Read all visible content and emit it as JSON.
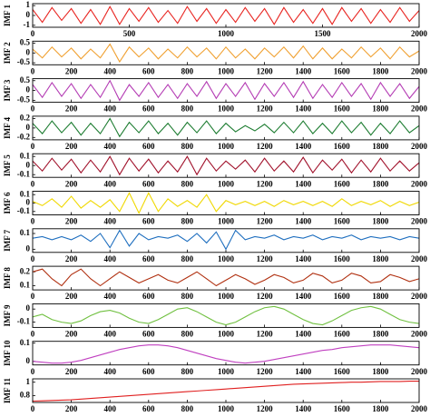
{
  "chart_data": [
    {
      "type": "line",
      "ylabel": "IMF 1",
      "color": "#e8231f",
      "xlim": [
        0,
        2000
      ],
      "xticks": [
        0,
        500,
        1000,
        1500,
        2000
      ],
      "ylim": [
        -1.2,
        1.2
      ],
      "yticks": [
        -1,
        0,
        1
      ],
      "x": [
        0,
        50,
        100,
        150,
        200,
        250,
        300,
        350,
        400,
        450,
        500,
        550,
        600,
        650,
        700,
        750,
        800,
        850,
        900,
        950,
        1000,
        1050,
        1100,
        1150,
        1200,
        1250,
        1300,
        1350,
        1400,
        1450,
        1500,
        1550,
        1600,
        1650,
        1700,
        1750,
        1800,
        1850,
        1900,
        1950,
        2000
      ],
      "values": [
        0.6,
        -0.7,
        0.8,
        -0.5,
        0.7,
        -0.8,
        0.6,
        -0.9,
        0.9,
        -0.9,
        0.7,
        -0.6,
        0.8,
        -0.7,
        0.5,
        -0.8,
        0.9,
        -0.6,
        0.7,
        -0.8,
        0.6,
        -0.7,
        0.8,
        -0.6,
        0.7,
        -0.9,
        0.8,
        -0.7,
        0.6,
        -0.8,
        0.7,
        -0.9,
        0.8,
        -0.6,
        0.7,
        -0.8,
        0.6,
        -0.7,
        0.8,
        -0.6,
        0.5
      ]
    },
    {
      "type": "line",
      "ylabel": "IMF 2",
      "color": "#f0a030",
      "xlim": [
        0,
        2000
      ],
      "xticks": [
        0,
        200,
        400,
        600,
        800,
        1000,
        1200,
        1400,
        1600,
        1800,
        2000
      ],
      "ylim": [
        -0.6,
        0.6
      ],
      "yticks": [
        -0.5,
        0,
        0.5
      ],
      "x": [
        0,
        50,
        100,
        150,
        200,
        250,
        300,
        350,
        400,
        450,
        500,
        550,
        600,
        650,
        700,
        750,
        800,
        850,
        900,
        950,
        1000,
        1050,
        1100,
        1150,
        1200,
        1250,
        1300,
        1350,
        1400,
        1450,
        1500,
        1550,
        1600,
        1650,
        1700,
        1750,
        1800,
        1850,
        1900,
        1950,
        2000
      ],
      "values": [
        0.2,
        -0.25,
        0.3,
        -0.2,
        0.25,
        -0.3,
        0.2,
        -0.25,
        0.45,
        -0.45,
        0.3,
        -0.2,
        0.25,
        -0.3,
        0.2,
        -0.25,
        0.3,
        -0.2,
        0.25,
        -0.3,
        0.3,
        -0.25,
        0.2,
        -0.3,
        0.25,
        -0.2,
        0.3,
        -0.25,
        0.35,
        -0.3,
        0.25,
        -0.3,
        0.2,
        -0.25,
        0.3,
        -0.2,
        0.25,
        -0.3,
        0.3,
        -0.2,
        0.1
      ]
    },
    {
      "type": "line",
      "ylabel": "IMF 3",
      "color": "#b43cb4",
      "xlim": [
        0,
        2000
      ],
      "xticks": [
        0,
        200,
        400,
        600,
        800,
        1000,
        1200,
        1400,
        1600,
        1800,
        2000
      ],
      "ylim": [
        -0.6,
        0.6
      ],
      "yticks": [
        -0.5,
        0,
        0.5
      ],
      "x": [
        0,
        50,
        100,
        150,
        200,
        250,
        300,
        350,
        400,
        450,
        500,
        550,
        600,
        650,
        700,
        750,
        800,
        850,
        900,
        950,
        1000,
        1050,
        1100,
        1150,
        1200,
        1250,
        1300,
        1350,
        1400,
        1450,
        1500,
        1550,
        1600,
        1650,
        1700,
        1750,
        1800,
        1850,
        1900,
        1950,
        2000
      ],
      "values": [
        0.3,
        -0.35,
        0.4,
        -0.3,
        0.35,
        -0.4,
        0.3,
        -0.35,
        0.5,
        -0.5,
        0.3,
        -0.3,
        0.4,
        -0.35,
        0.3,
        -0.4,
        0.35,
        -0.3,
        0.45,
        -0.4,
        0.35,
        -0.3,
        0.4,
        -0.45,
        0.35,
        -0.3,
        0.4,
        -0.35,
        0.45,
        -0.4,
        0.3,
        -0.35,
        0.4,
        -0.3,
        0.35,
        -0.45,
        0.4,
        -0.3,
        0.35,
        -0.4,
        0.2
      ]
    },
    {
      "type": "line",
      "ylabel": "IMF 4",
      "color": "#1e7d32",
      "xlim": [
        0,
        2000
      ],
      "xticks": [
        0,
        200,
        400,
        600,
        800,
        1000,
        1200,
        1400,
        1600,
        1800,
        2000
      ],
      "ylim": [
        -0.25,
        0.25
      ],
      "yticks": [
        -0.2,
        0,
        0.2
      ],
      "x": [
        0,
        50,
        100,
        150,
        200,
        250,
        300,
        350,
        400,
        450,
        500,
        550,
        600,
        650,
        700,
        750,
        800,
        850,
        900,
        950,
        1000,
        1050,
        1100,
        1150,
        1200,
        1250,
        1300,
        1350,
        1400,
        1450,
        1500,
        1550,
        1600,
        1650,
        1700,
        1750,
        1800,
        1850,
        1900,
        1950,
        2000
      ],
      "values": [
        0.1,
        -0.12,
        0.15,
        -0.1,
        0.12,
        -0.15,
        0.1,
        -0.12,
        0.2,
        -0.18,
        0.12,
        -0.1,
        0.15,
        -0.12,
        0.1,
        -0.15,
        0.12,
        -0.1,
        0.15,
        -0.12,
        0.1,
        -0.08,
        0.05,
        -0.06,
        0.08,
        -0.1,
        0.12,
        -0.1,
        0.15,
        -0.12,
        0.1,
        -0.12,
        0.15,
        -0.1,
        0.12,
        -0.15,
        0.1,
        -0.12,
        0.15,
        -0.1,
        0.05
      ]
    },
    {
      "type": "line",
      "ylabel": "IMF 5",
      "color": "#a0102a",
      "xlim": [
        0,
        2000
      ],
      "xticks": [
        0,
        200,
        400,
        600,
        800,
        1000,
        1200,
        1400,
        1600,
        1800,
        2000
      ],
      "ylim": [
        -0.13,
        0.13
      ],
      "yticks": [
        -0.1,
        0,
        0.1
      ],
      "x": [
        0,
        50,
        100,
        150,
        200,
        250,
        300,
        350,
        400,
        450,
        500,
        550,
        600,
        650,
        700,
        750,
        800,
        850,
        900,
        950,
        1000,
        1050,
        1100,
        1150,
        1200,
        1250,
        1300,
        1350,
        1400,
        1450,
        1500,
        1550,
        1600,
        1650,
        1700,
        1750,
        1800,
        1850,
        1900,
        1950,
        2000
      ],
      "values": [
        0.05,
        -0.06,
        0.08,
        -0.05,
        0.07,
        -0.08,
        0.06,
        -0.07,
        0.1,
        -0.1,
        0.08,
        -0.06,
        0.07,
        -0.08,
        0.05,
        -0.07,
        0.1,
        -0.1,
        0.08,
        -0.06,
        0.05,
        -0.04,
        0.06,
        -0.07,
        0.08,
        -0.06,
        0.05,
        -0.07,
        0.09,
        -0.08,
        0.06,
        -0.05,
        0.07,
        -0.08,
        0.06,
        -0.07,
        0.08,
        -0.06,
        0.05,
        -0.06,
        0.03
      ]
    },
    {
      "type": "line",
      "ylabel": "IMF 6",
      "color": "#f0d800",
      "xlim": [
        0,
        2000
      ],
      "xticks": [
        0,
        200,
        400,
        600,
        800,
        1000,
        1200,
        1400,
        1600,
        1800,
        2000
      ],
      "ylim": [
        -0.14,
        0.14
      ],
      "yticks": [
        -0.1,
        0,
        0.1
      ],
      "x": [
        0,
        50,
        100,
        150,
        200,
        250,
        300,
        350,
        400,
        450,
        500,
        550,
        600,
        650,
        700,
        750,
        800,
        850,
        900,
        950,
        1000,
        1050,
        1100,
        1150,
        1200,
        1250,
        1300,
        1350,
        1400,
        1450,
        1500,
        1550,
        1600,
        1650,
        1700,
        1750,
        1800,
        1850,
        1900,
        1950,
        2000
      ],
      "values": [
        0.02,
        -0.03,
        0.05,
        -0.05,
        0.08,
        -0.06,
        0.03,
        -0.05,
        0.04,
        -0.1,
        0.12,
        -0.12,
        0.12,
        -0.1,
        0.05,
        -0.04,
        0.03,
        -0.05,
        0.1,
        -0.1,
        0.03,
        -0.02,
        0.02,
        -0.03,
        0.02,
        -0.04,
        0.03,
        -0.02,
        0.02,
        -0.03,
        0.02,
        -0.04,
        0.05,
        -0.03,
        0.02,
        -0.02,
        0.03,
        -0.04,
        0.02,
        -0.03,
        0.01
      ]
    },
    {
      "type": "line",
      "ylabel": "IMF 7",
      "color": "#1f6fbf",
      "xlim": [
        0,
        2000
      ],
      "xticks": [
        0,
        200,
        400,
        600,
        800,
        1000,
        1200,
        1400,
        1600,
        1800,
        2000
      ],
      "ylim": [
        -0.02,
        0.13
      ],
      "yticks": [
        0,
        0.1
      ],
      "x": [
        0,
        50,
        100,
        150,
        200,
        250,
        300,
        350,
        400,
        450,
        500,
        550,
        600,
        650,
        700,
        750,
        800,
        850,
        900,
        950,
        1000,
        1050,
        1100,
        1150,
        1200,
        1250,
        1300,
        1350,
        1400,
        1450,
        1500,
        1550,
        1600,
        1650,
        1700,
        1750,
        1800,
        1850,
        1900,
        1950,
        2000
      ],
      "values": [
        0.07,
        0.08,
        0.06,
        0.08,
        0.06,
        0.09,
        0.05,
        0.1,
        0.01,
        0.12,
        0.02,
        0.1,
        0.06,
        0.08,
        0.07,
        0.09,
        0.05,
        0.1,
        0.04,
        0.11,
        0.0,
        0.12,
        0.06,
        0.08,
        0.07,
        0.09,
        0.06,
        0.08,
        0.07,
        0.09,
        0.06,
        0.08,
        0.07,
        0.09,
        0.06,
        0.08,
        0.07,
        0.08,
        0.06,
        0.08,
        0.07
      ]
    },
    {
      "type": "line",
      "ylabel": "IMF 8",
      "color": "#b03010",
      "xlim": [
        0,
        2000
      ],
      "xticks": [
        0,
        200,
        400,
        600,
        800,
        1000,
        1200,
        1400,
        1600,
        1800,
        2000
      ],
      "ylim": [
        0.07,
        0.24
      ],
      "yticks": [
        0.1,
        0.2
      ],
      "x": [
        0,
        50,
        100,
        150,
        200,
        250,
        300,
        350,
        400,
        450,
        500,
        550,
        600,
        650,
        700,
        750,
        800,
        850,
        900,
        950,
        1000,
        1050,
        1100,
        1150,
        1200,
        1250,
        1300,
        1350,
        1400,
        1450,
        1500,
        1550,
        1600,
        1650,
        1700,
        1750,
        1800,
        1850,
        1900,
        1950,
        2000
      ],
      "values": [
        0.2,
        0.22,
        0.15,
        0.1,
        0.18,
        0.22,
        0.15,
        0.1,
        0.15,
        0.2,
        0.16,
        0.12,
        0.15,
        0.18,
        0.14,
        0.12,
        0.16,
        0.2,
        0.15,
        0.1,
        0.14,
        0.18,
        0.15,
        0.11,
        0.14,
        0.18,
        0.16,
        0.12,
        0.14,
        0.19,
        0.17,
        0.12,
        0.14,
        0.19,
        0.17,
        0.12,
        0.13,
        0.18,
        0.16,
        0.13,
        0.15
      ]
    },
    {
      "type": "line",
      "ylabel": "IMF 9",
      "color": "#70c040",
      "xlim": [
        0,
        2000
      ],
      "xticks": [
        0,
        200,
        400,
        600,
        800,
        1000,
        1200,
        1400,
        1600,
        1800,
        2000
      ],
      "ylim": [
        -0.14,
        0.04
      ],
      "yticks": [
        -0.1,
        0
      ],
      "x": [
        0,
        50,
        100,
        150,
        200,
        250,
        300,
        350,
        400,
        450,
        500,
        550,
        600,
        650,
        700,
        750,
        800,
        850,
        900,
        950,
        1000,
        1050,
        1100,
        1150,
        1200,
        1250,
        1300,
        1350,
        1400,
        1450,
        1500,
        1550,
        1600,
        1650,
        1700,
        1750,
        1800,
        1850,
        1900,
        1950,
        2000
      ],
      "values": [
        -0.06,
        -0.04,
        -0.08,
        -0.1,
        -0.11,
        -0.09,
        -0.05,
        -0.02,
        -0.01,
        -0.03,
        -0.07,
        -0.1,
        -0.11,
        -0.08,
        -0.04,
        0.0,
        0.01,
        -0.02,
        -0.06,
        -0.1,
        -0.12,
        -0.1,
        -0.06,
        -0.02,
        0.01,
        0.02,
        0.0,
        -0.04,
        -0.08,
        -0.11,
        -0.12,
        -0.09,
        -0.05,
        -0.01,
        0.01,
        0.02,
        0.0,
        -0.04,
        -0.08,
        -0.1,
        -0.11
      ]
    },
    {
      "type": "line",
      "ylabel": "IMF 10",
      "color": "#c040c0",
      "xlim": [
        0,
        2000
      ],
      "xticks": [
        0,
        200,
        400,
        600,
        800,
        1000,
        1200,
        1400,
        1600,
        1800,
        2000
      ],
      "ylim": [
        -0.02,
        0.11
      ],
      "yticks": [
        0,
        0.1
      ],
      "x": [
        0,
        50,
        100,
        150,
        200,
        250,
        300,
        350,
        400,
        450,
        500,
        550,
        600,
        650,
        700,
        750,
        800,
        850,
        900,
        950,
        1000,
        1050,
        1100,
        1150,
        1200,
        1250,
        1300,
        1350,
        1400,
        1450,
        1500,
        1550,
        1600,
        1650,
        1700,
        1750,
        1800,
        1850,
        1900,
        1950,
        2000
      ],
      "values": [
        0.0,
        -0.005,
        -0.01,
        -0.01,
        -0.005,
        0.005,
        0.02,
        0.035,
        0.05,
        0.065,
        0.075,
        0.085,
        0.09,
        0.09,
        0.085,
        0.075,
        0.06,
        0.045,
        0.03,
        0.015,
        0.005,
        -0.005,
        -0.01,
        -0.005,
        0.0,
        0.01,
        0.02,
        0.03,
        0.04,
        0.05,
        0.06,
        0.065,
        0.075,
        0.08,
        0.085,
        0.09,
        0.09,
        0.09,
        0.085,
        0.08,
        0.075
      ]
    },
    {
      "type": "line",
      "ylabel": "IMF 11",
      "color": "#e02020",
      "xlim": [
        0,
        2000
      ],
      "xticks": [
        0,
        200,
        400,
        600,
        800,
        1000,
        1200,
        1400,
        1600,
        1800,
        2000
      ],
      "ylim": [
        0.7,
        1.05
      ],
      "yticks": [
        0.8,
        1
      ],
      "x": [
        0,
        50,
        100,
        150,
        200,
        250,
        300,
        350,
        400,
        450,
        500,
        550,
        600,
        650,
        700,
        750,
        800,
        850,
        900,
        950,
        1000,
        1050,
        1100,
        1150,
        1200,
        1250,
        1300,
        1350,
        1400,
        1450,
        1500,
        1550,
        1600,
        1650,
        1700,
        1750,
        1800,
        1850,
        1900,
        1950,
        2000
      ],
      "values": [
        0.72,
        0.725,
        0.73,
        0.735,
        0.74,
        0.75,
        0.76,
        0.77,
        0.78,
        0.79,
        0.8,
        0.81,
        0.82,
        0.83,
        0.84,
        0.85,
        0.86,
        0.87,
        0.88,
        0.89,
        0.9,
        0.91,
        0.92,
        0.93,
        0.94,
        0.95,
        0.96,
        0.97,
        0.975,
        0.98,
        0.985,
        0.99,
        0.995,
        1.0,
        1.0,
        1.005,
        1.01,
        1.01,
        1.01,
        1.015,
        1.015
      ]
    }
  ]
}
